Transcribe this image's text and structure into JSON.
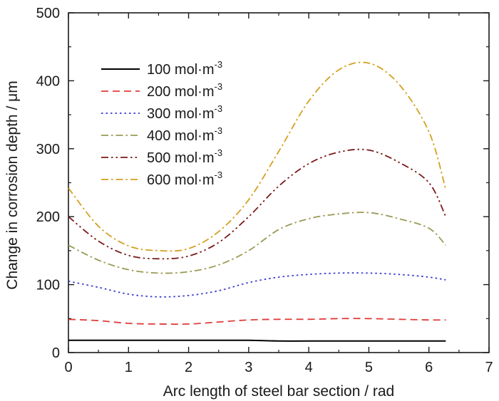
{
  "chart_data": {
    "type": "line",
    "title": "",
    "xlabel": "Arc length of steel bar section / rad",
    "ylabel": "Change in corrosion depth / μm",
    "xlim": [
      0,
      7
    ],
    "ylim": [
      0,
      500
    ],
    "xticks": [
      0,
      1,
      2,
      3,
      4,
      5,
      6,
      7
    ],
    "yticks": [
      0,
      100,
      200,
      300,
      400,
      500
    ],
    "grid": false,
    "legend_position": "top-left",
    "x": [
      0,
      0.5,
      1,
      1.5,
      2,
      2.5,
      3,
      3.5,
      4,
      4.5,
      5,
      5.5,
      6,
      6.28
    ],
    "series": [
      {
        "name": "100 mol·m",
        "sup": "-3",
        "color": "#000000",
        "dash": "solid",
        "values": [
          18,
          18,
          18,
          18,
          18,
          18,
          18,
          17,
          17,
          17,
          17,
          17,
          17,
          17
        ]
      },
      {
        "name": "200 mol·m",
        "sup": "-3",
        "color": "#e03c3c",
        "dash": "dash",
        "values": [
          49,
          47,
          43,
          42,
          42,
          45,
          48,
          49,
          49,
          50,
          50,
          49,
          48,
          48
        ]
      },
      {
        "name": "300 mol·m",
        "sup": "-3",
        "color": "#3a3ad0",
        "dash": "dot",
        "values": [
          105,
          96,
          86,
          82,
          84,
          91,
          103,
          111,
          115,
          117,
          117,
          115,
          111,
          107
        ]
      },
      {
        "name": "400 mol·m",
        "sup": "-3",
        "color": "#9a9a54",
        "dash": "dashdot",
        "values": [
          158,
          136,
          122,
          117,
          119,
          129,
          150,
          181,
          197,
          204,
          206,
          197,
          183,
          158
        ]
      },
      {
        "name": "500 mol·m",
        "sup": "-3",
        "color": "#7a1a1a",
        "dash": "dashdotdot",
        "values": [
          200,
          164,
          143,
          138,
          142,
          162,
          200,
          245,
          278,
          295,
          298,
          280,
          250,
          200
        ]
      },
      {
        "name": "600 mol·m",
        "sup": "-3",
        "color": "#d4a020",
        "dash": "dashdot",
        "values": [
          242,
          186,
          157,
          150,
          153,
          178,
          225,
          296,
          370,
          416,
          426,
          395,
          325,
          240
        ]
      }
    ]
  }
}
